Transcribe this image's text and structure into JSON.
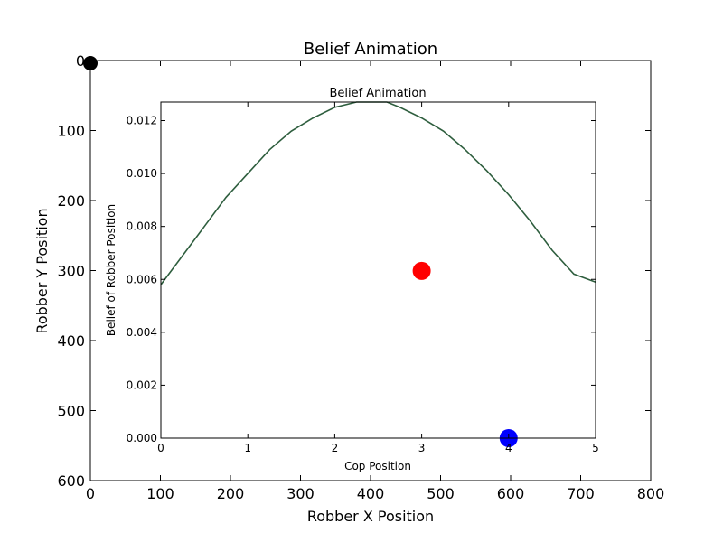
{
  "chart_data": [
    {
      "type": "scatter",
      "title": "Belief Animation",
      "xlabel": "Robber X Position",
      "ylabel": "Robber Y Position",
      "xlim": [
        0,
        800
      ],
      "ylim": [
        600,
        0
      ],
      "y_inverted": true,
      "x_ticks": [
        "0",
        "100",
        "200",
        "300",
        "400",
        "500",
        "600",
        "700",
        "800"
      ],
      "y_ticks": [
        "0",
        "100",
        "200",
        "300",
        "400",
        "500",
        "600"
      ],
      "grid": false,
      "points": [
        {
          "x": 0,
          "y": 0,
          "color": "#000000"
        }
      ]
    },
    {
      "type": "line",
      "title": "Belief Animation",
      "xlabel": "Cop Position",
      "ylabel": "Belief of Robber Position",
      "xlim": [
        0,
        5
      ],
      "ylim": [
        0,
        0.0127
      ],
      "x_ticks": [
        "0",
        "1",
        "2",
        "3",
        "4",
        "5"
      ],
      "y_ticks": [
        "0.000",
        "0.002",
        "0.004",
        "0.006",
        "0.008",
        "0.010",
        "0.012"
      ],
      "grid": false,
      "line_color": "#2e5e3e",
      "series": [
        {
          "x": [
            0,
            0.25,
            0.5,
            0.75,
            1.0,
            1.25,
            1.5,
            1.75,
            2.0,
            2.25,
            2.5,
            2.6,
            2.75,
            3.0,
            3.25,
            3.5,
            3.75,
            4.0,
            4.25,
            4.5,
            4.75,
            5.0
          ],
          "y": [
            0.0058,
            0.0069,
            0.008,
            0.0091,
            0.01,
            0.0109,
            0.0116,
            0.0121,
            0.0125,
            0.0127,
            0.0127,
            0.0127,
            0.0125,
            0.0121,
            0.0116,
            0.0109,
            0.0101,
            0.0092,
            0.0082,
            0.0071,
            0.0062,
            0.0059
          ]
        }
      ],
      "points": [
        {
          "x": 3.0,
          "y": 0.00632,
          "color": "#ff0000"
        },
        {
          "x": 4.0,
          "y": 0.0,
          "color": "#0000ff"
        }
      ]
    }
  ]
}
